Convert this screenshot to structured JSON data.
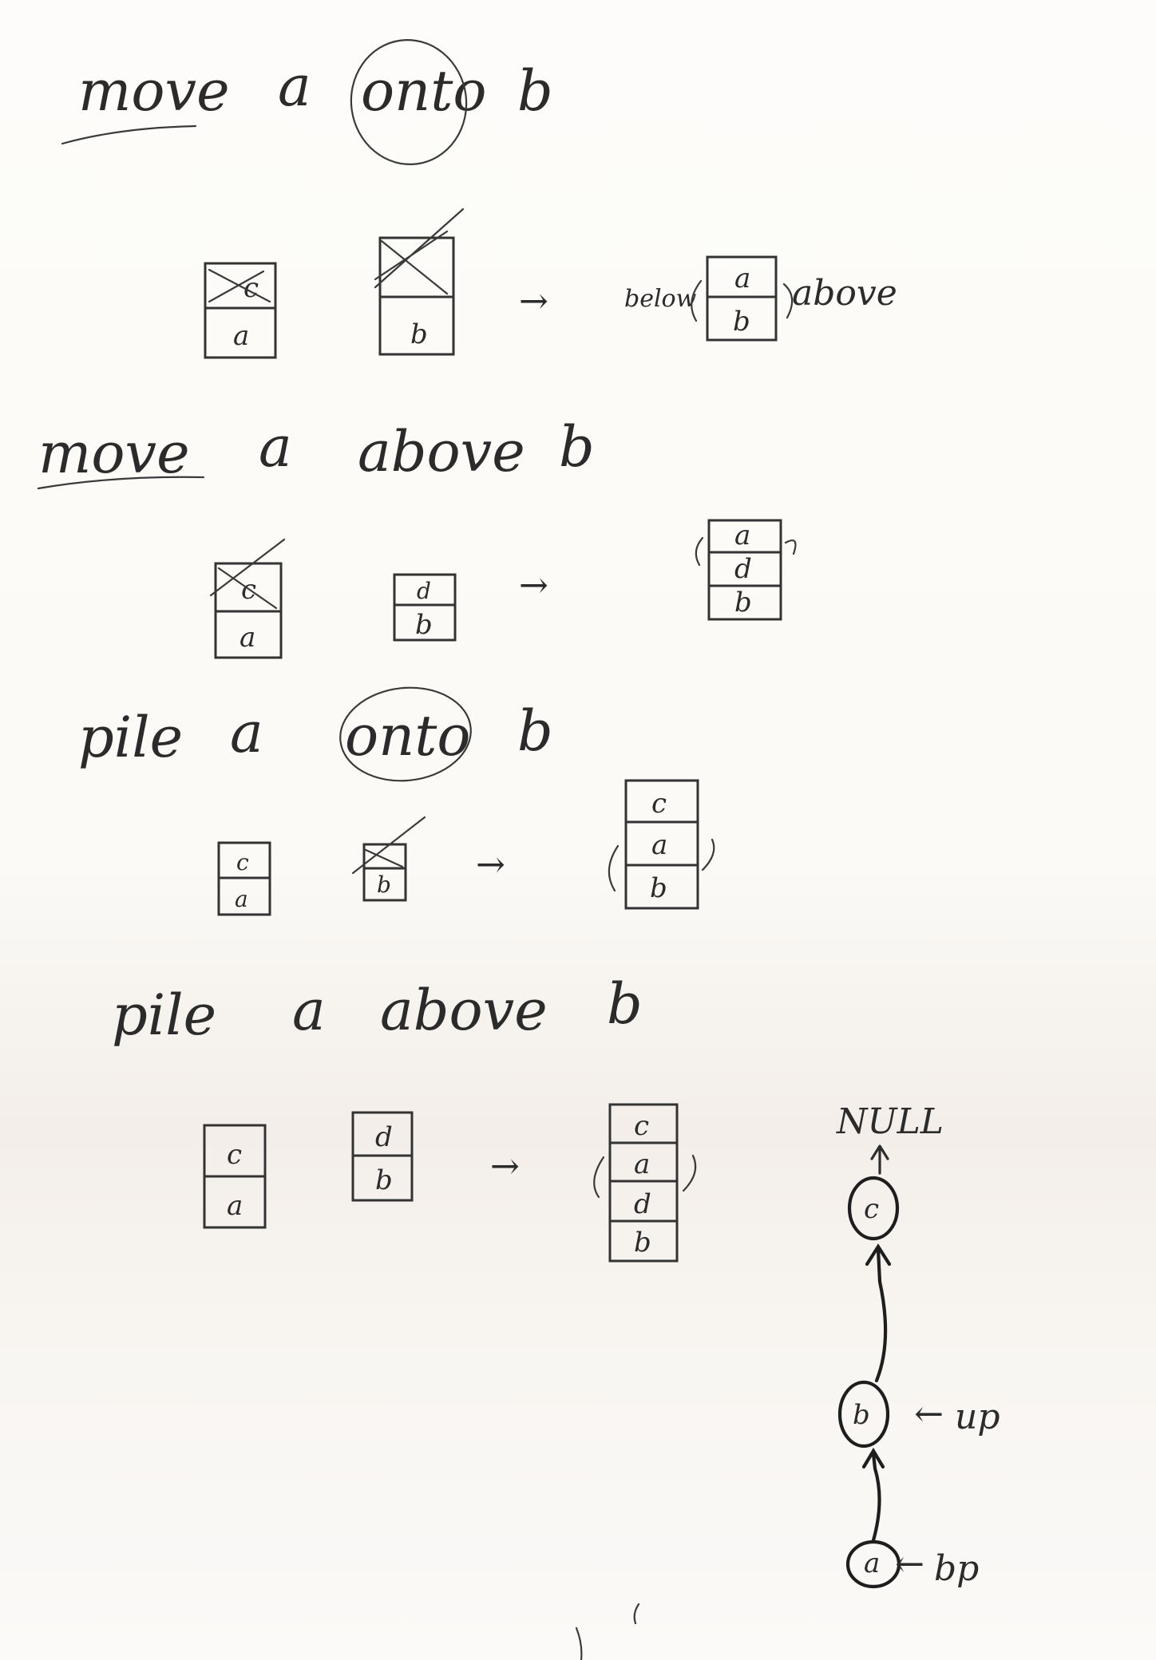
{
  "commands": [
    {
      "verb": "move",
      "prep_subject": "a",
      "prep": "onto",
      "object": "b"
    },
    {
      "verb": "move",
      "prep_subject": "a",
      "prep": "above",
      "object": "b"
    },
    {
      "verb": "pile",
      "prep_subject": "a",
      "prep": "onto",
      "object": "b"
    },
    {
      "verb": "pile",
      "prep_subject": "a",
      "prep": "above",
      "object": "b"
    }
  ],
  "blocks": {
    "a": "a",
    "b": "b",
    "c": "c",
    "d": "d"
  },
  "annotations": {
    "below": "below",
    "above": "above",
    "arrow": "→"
  },
  "linked_list": {
    "terminal": "NULL",
    "nodes": [
      "c",
      "b",
      "a"
    ],
    "up_pointer_label": "up",
    "base_pointer_label": "bp"
  }
}
